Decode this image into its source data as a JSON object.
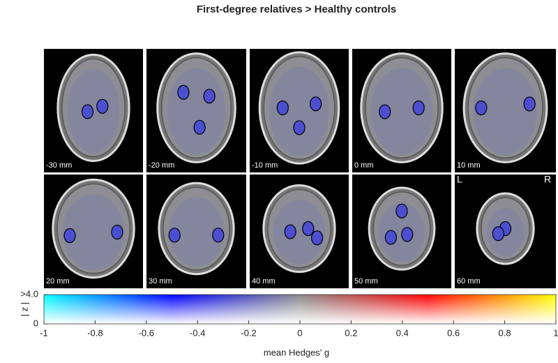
{
  "title": "First-degree relatives > Healthy controls",
  "slices": [
    "-30 mm",
    "-20 mm",
    "-10 mm",
    "0 mm",
    "10 mm",
    "20 mm",
    "30 mm",
    "40 mm",
    "50 mm",
    "60 mm"
  ],
  "orientation": {
    "left": "L",
    "right": "R"
  },
  "colorbar": {
    "xlabel": "mean Hedges' g",
    "xlim": [
      -1,
      1
    ],
    "xticks": [
      -1,
      -0.8,
      -0.6,
      -0.4,
      -0.2,
      0,
      0.2,
      0.4,
      0.6,
      0.8,
      1
    ],
    "ylabel": "| z |",
    "ylim": [
      0,
      4
    ],
    "yticks": [
      {
        "value": 0,
        "label": "0"
      },
      {
        "value": 4,
        "label": ">4.0"
      }
    ]
  }
}
